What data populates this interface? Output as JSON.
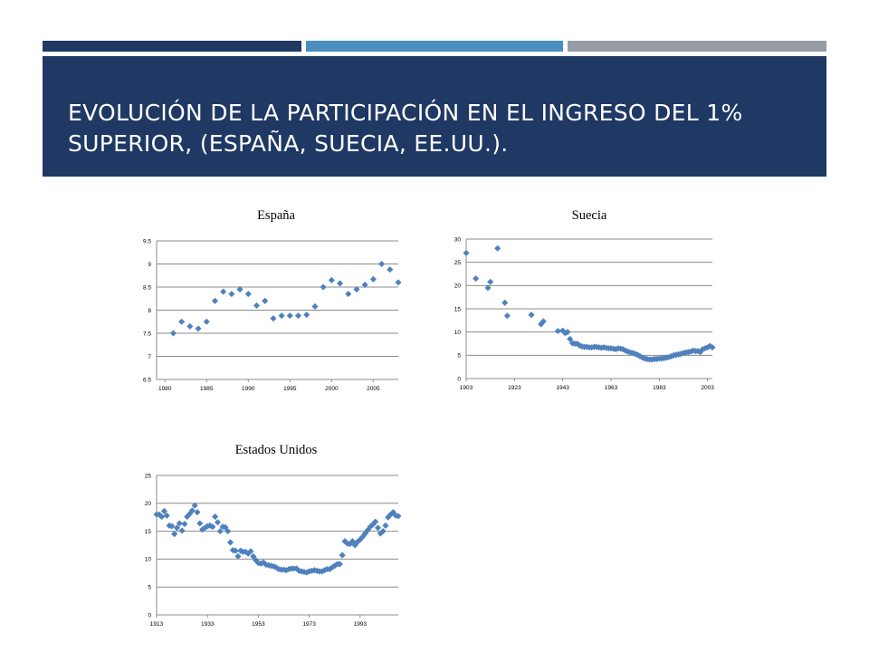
{
  "colors": {
    "dark_navy": "#1f3864",
    "steel_blue": "#4a8fc0",
    "gray": "#969ca3",
    "header_bg": "#1f3864",
    "marker": "#4f81bd",
    "gridline": "#8c8c8c"
  },
  "slide": {
    "title": "EVOLUCIÓN DE LA PARTICIPACIÓN EN EL INGRESO DEL 1% SUPERIOR, (ESPAÑA, SUECIA, EE.UU.)."
  },
  "chart_data": [
    {
      "type": "scatter",
      "title": "España",
      "xlim": [
        1979,
        2008
      ],
      "ylim": [
        6.5,
        9.5
      ],
      "x_ticks": [
        1980,
        1985,
        1990,
        1995,
        2000,
        2005
      ],
      "y_ticks": [
        6.5,
        7,
        7.5,
        8,
        8.5,
        9,
        9.5
      ],
      "grid": true,
      "series": [
        {
          "x": [
            1981,
            1982,
            1983,
            1984,
            1985,
            1986,
            1987,
            1988,
            1989,
            1990,
            1991,
            1992,
            1993,
            1994,
            1995,
            1996,
            1997,
            1998,
            1999,
            2000,
            2001,
            2002,
            2003,
            2004,
            2005,
            2006,
            2007,
            2008
          ],
          "y": [
            7.5,
            7.75,
            7.65,
            7.6,
            7.75,
            8.2,
            8.4,
            8.35,
            8.45,
            8.35,
            8.1,
            8.2,
            7.82,
            7.88,
            7.88,
            7.88,
            7.9,
            8.08,
            8.5,
            8.65,
            8.58,
            8.35,
            8.45,
            8.55,
            8.67,
            9.0,
            8.88,
            8.6
          ]
        }
      ]
    },
    {
      "type": "scatter",
      "title": "Suecia",
      "xlim": [
        1903,
        2005
      ],
      "ylim": [
        0,
        30
      ],
      "x_ticks": [
        1903,
        1923,
        1943,
        1963,
        1983,
        2003
      ],
      "y_ticks": [
        0,
        5,
        10,
        15,
        20,
        25,
        30
      ],
      "grid": true,
      "series": [
        {
          "x": [
            1903,
            1907,
            1912,
            1913,
            1916,
            1919,
            1920,
            1930,
            1934,
            1935,
            1941,
            1943,
            1944,
            1945,
            1946,
            1947,
            1948,
            1949,
            1950,
            1951,
            1952,
            1953,
            1954,
            1955,
            1956,
            1957,
            1958,
            1959,
            1960,
            1961,
            1962,
            1963,
            1964,
            1965,
            1966,
            1967,
            1968,
            1969,
            1970,
            1971,
            1972,
            1973,
            1974,
            1975,
            1976,
            1977,
            1978,
            1979,
            1980,
            1981,
            1982,
            1983,
            1984,
            1985,
            1986,
            1987,
            1988,
            1989,
            1990,
            1991,
            1992,
            1993,
            1994,
            1995,
            1996,
            1997,
            1998,
            1999,
            2000,
            2001,
            2002,
            2003,
            2004,
            2005
          ],
          "y": [
            27.0,
            21.5,
            19.5,
            20.8,
            28.0,
            16.3,
            13.5,
            13.7,
            11.7,
            12.3,
            10.2,
            10.3,
            9.8,
            10.0,
            8.5,
            7.6,
            7.5,
            7.5,
            7.1,
            6.9,
            6.8,
            6.8,
            6.7,
            6.7,
            6.8,
            6.8,
            6.7,
            6.6,
            6.7,
            6.6,
            6.5,
            6.5,
            6.4,
            6.3,
            6.5,
            6.4,
            6.3,
            6.0,
            5.8,
            5.6,
            5.5,
            5.3,
            5.1,
            4.8,
            4.5,
            4.3,
            4.2,
            4.1,
            4.1,
            4.2,
            4.2,
            4.3,
            4.3,
            4.4,
            4.5,
            4.6,
            4.8,
            5.0,
            5.1,
            5.2,
            5.3,
            5.5,
            5.6,
            5.7,
            5.8,
            6.0,
            5.9,
            5.9,
            5.7,
            6.3,
            6.5,
            6.7,
            7.0,
            6.7
          ]
        }
      ]
    },
    {
      "type": "scatter",
      "title": "Estados Unidos",
      "xlim": [
        1913,
        2008
      ],
      "ylim": [
        0,
        25
      ],
      "x_ticks": [
        1913,
        1933,
        1953,
        1973,
        1993
      ],
      "y_ticks": [
        0,
        5,
        10,
        15,
        20,
        25
      ],
      "grid": true,
      "series": [
        {
          "x": [
            1913,
            1914,
            1915,
            1916,
            1917,
            1918,
            1919,
            1920,
            1921,
            1922,
            1923,
            1924,
            1925,
            1926,
            1927,
            1928,
            1929,
            1930,
            1931,
            1932,
            1933,
            1934,
            1935,
            1936,
            1937,
            1938,
            1939,
            1940,
            1941,
            1942,
            1943,
            1944,
            1945,
            1946,
            1947,
            1948,
            1949,
            1950,
            1951,
            1952,
            1953,
            1954,
            1955,
            1956,
            1957,
            1958,
            1959,
            1960,
            1961,
            1962,
            1963,
            1964,
            1965,
            1966,
            1967,
            1968,
            1969,
            1970,
            1971,
            1972,
            1973,
            1974,
            1975,
            1976,
            1977,
            1978,
            1979,
            1980,
            1981,
            1982,
            1983,
            1984,
            1985,
            1986,
            1987,
            1988,
            1989,
            1990,
            1991,
            1992,
            1993,
            1994,
            1995,
            1996,
            1997,
            1998,
            1999,
            2000,
            2001,
            2002,
            2003,
            2004,
            2005,
            2006,
            2007,
            2008
          ],
          "y": [
            18.0,
            18.0,
            17.6,
            18.6,
            17.8,
            16.0,
            15.9,
            14.5,
            15.6,
            16.4,
            15.1,
            16.3,
            17.6,
            18.1,
            18.7,
            19.6,
            18.4,
            16.4,
            15.3,
            15.6,
            15.9,
            16.0,
            15.8,
            17.6,
            16.6,
            15.0,
            15.8,
            15.7,
            15.0,
            13.0,
            11.6,
            11.5,
            10.5,
            11.5,
            11.3,
            11.3,
            11.0,
            11.4,
            10.5,
            9.8,
            9.3,
            9.2,
            9.4,
            9.0,
            8.9,
            8.8,
            8.7,
            8.5,
            8.2,
            8.1,
            8.1,
            8.0,
            8.2,
            8.3,
            8.3,
            8.3,
            7.9,
            7.8,
            7.7,
            7.6,
            7.8,
            7.9,
            8.0,
            7.9,
            7.8,
            7.8,
            8.0,
            8.2,
            8.2,
            8.5,
            8.8,
            9.1,
            9.1,
            10.7,
            13.2,
            12.8,
            12.7,
            13.2,
            12.5,
            13.1,
            13.5,
            14.0,
            14.6,
            15.2,
            15.8,
            16.2,
            16.7,
            15.6,
            14.6,
            15.0,
            16.0,
            17.5,
            18.0,
            18.4,
            17.8,
            17.7
          ]
        }
      ]
    }
  ]
}
